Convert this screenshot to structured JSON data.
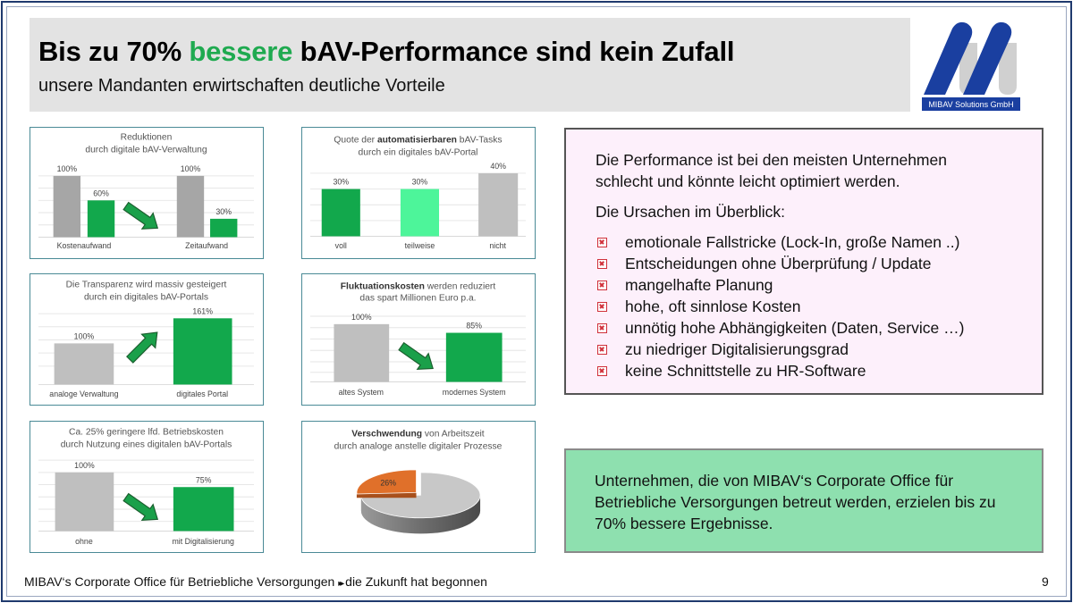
{
  "header": {
    "title_pre": "Bis zu 70% ",
    "title_highlight": "bessere",
    "title_post": " bAV-Performance sind kein Zufall",
    "subtitle": "unsere Mandanten erwirtschaften deutliche Vorteile",
    "highlight_color": "#1faa50"
  },
  "logo": {
    "text": "MIBAV Solutions GmbH",
    "brand_color": "#1a3fa0"
  },
  "chart_data": [
    {
      "type": "bar",
      "title": [
        [
          {
            "text": "Reduktionen"
          }
        ],
        [
          {
            "text": "durch digitale bAV-Verwaltung"
          }
        ]
      ],
      "categories": [
        "Kostenaufwand",
        "Zeitaufwand"
      ],
      "series": [
        {
          "values": [
            100,
            100
          ],
          "color": "#a6a6a6"
        },
        {
          "values": [
            60,
            30
          ],
          "color": "#12a84c"
        }
      ],
      "data_labels": [
        "100%",
        "60%",
        "100%",
        "30%"
      ],
      "arrow": "down-right"
    },
    {
      "type": "bar",
      "title": [
        [
          {
            "text": "Quote der "
          },
          {
            "text": "automatisierbaren",
            "bold": true
          },
          {
            "text": " bAV-Tasks"
          }
        ],
        [
          {
            "text": "durch ein digitales bAV-Portal"
          }
        ]
      ],
      "categories": [
        "voll",
        "teilweise",
        "nicht"
      ],
      "values": [
        30,
        30,
        40
      ],
      "colors": [
        "#12a84c",
        "#4df59a",
        "#bfbfbf"
      ],
      "data_labels": [
        "30%",
        "30%",
        "40%"
      ]
    },
    {
      "type": "bar",
      "title": [
        [
          {
            "text": "Die Transparenz wird massiv gesteigert"
          }
        ],
        [
          {
            "text": "durch ein digitales bAV-Portals"
          }
        ]
      ],
      "categories": [
        "analoge Verwaltung",
        "digitales Portal"
      ],
      "values": [
        100,
        161
      ],
      "colors": [
        "#bfbfbf",
        "#12a84c"
      ],
      "data_labels": [
        "100%",
        "161%"
      ],
      "arrow": "up-right"
    },
    {
      "type": "bar",
      "title": [
        [
          {
            "text": "Fluktuationskosten",
            "bold": true
          },
          {
            "text": " werden reduziert"
          }
        ],
        [
          {
            "text": "das spart Millionen Euro p.a."
          }
        ]
      ],
      "categories": [
        "altes System",
        "modernes System"
      ],
      "values": [
        100,
        85
      ],
      "colors": [
        "#bfbfbf",
        "#12a84c"
      ],
      "data_labels": [
        "100%",
        "85%"
      ],
      "arrow": "down-right"
    },
    {
      "type": "bar",
      "title": [
        [
          {
            "text": "Ca. 25% geringere lfd. Betriebskosten"
          }
        ],
        [
          {
            "text": "durch Nutzung eines digitalen bAV-Portals"
          }
        ]
      ],
      "categories": [
        "ohne",
        "mit Digitalisierung"
      ],
      "values": [
        100,
        75
      ],
      "colors": [
        "#bfbfbf",
        "#12a84c"
      ],
      "data_labels": [
        "100%",
        "75%"
      ],
      "arrow": "down-right"
    },
    {
      "type": "pie",
      "title": [
        [
          {
            "text": "Verschwendung",
            "bold": true
          },
          {
            "text": " von Arbeitszeit"
          }
        ],
        [
          {
            "text": "durch analoge anstelle digitaler Prozesse"
          }
        ]
      ],
      "values": [
        26,
        74
      ],
      "colors": [
        "#e0702a",
        "#c8c8c8"
      ],
      "data_labels": [
        "26%"
      ]
    }
  ],
  "problems_panel": {
    "intro": "Die Performance ist bei den meisten Unternehmen schlecht und könnte leicht optimiert werden.",
    "causes_heading": "Die Ursachen im Überblick:",
    "causes": [
      "emotionale Fallstricke (Lock-In, große Namen ..)",
      "Entscheidungen ohne Überprüfung / Update",
      "mangelhafte Planung",
      "hohe, oft sinnlose Kosten",
      "unnötig hohe Abhängigkeiten (Daten, Service …)",
      "zu niedriger Digitalisierungsgrad",
      "keine Schnittstelle zu HR-Software"
    ]
  },
  "result_panel": {
    "text": "Unternehmen, die von MIBAV‘s Corporate Office für Betriebliche Versorgungen betreut werden, erzielen bis zu 70% bessere Ergebnisse."
  },
  "footer": {
    "text": "MIBAV‘s Corporate Office für Betriebliche Versorgungen ⏩ die Zukunft hat begonnen",
    "text_pre": "MIBAV‘s Corporate Office für Betriebliche Versorgungen",
    "separator": "▸▸",
    "text_post": "die Zukunft hat begonnen",
    "page_number": "9"
  }
}
